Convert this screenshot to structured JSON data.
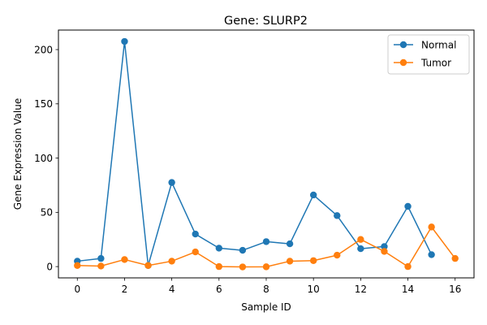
{
  "chart_data": {
    "type": "line",
    "title": "Gene: SLURP2",
    "xlabel": "Sample ID",
    "ylabel": "Gene Expression Value",
    "xlim": [
      -0.8,
      16.8
    ],
    "ylim": [
      -10.4,
      218
    ],
    "xticks": [
      0,
      2,
      4,
      6,
      8,
      10,
      12,
      14,
      16
    ],
    "yticks": [
      0,
      50,
      100,
      150,
      200
    ],
    "legend_position": "top-right",
    "grid": false,
    "series": [
      {
        "name": "Normal",
        "color": "#1f77b4",
        "x": [
          0,
          1,
          2,
          3,
          4,
          5,
          6,
          7,
          8,
          9,
          10,
          11,
          12,
          13,
          14,
          15
        ],
        "y": [
          5,
          7.5,
          207.5,
          1,
          77.5,
          30,
          17,
          15,
          23,
          21,
          66,
          47,
          16.5,
          18.5,
          55.5,
          11
        ]
      },
      {
        "name": "Tumor",
        "color": "#ff7f0e",
        "x": [
          0,
          1,
          2,
          3,
          4,
          5,
          6,
          7,
          8,
          9,
          10,
          11,
          12,
          13,
          14,
          15,
          16
        ],
        "y": [
          1,
          0.5,
          6.5,
          1,
          5,
          13.5,
          0,
          -0.3,
          -0.2,
          5,
          5.5,
          10.5,
          25,
          14,
          0,
          36.5,
          7.5
        ]
      }
    ]
  }
}
